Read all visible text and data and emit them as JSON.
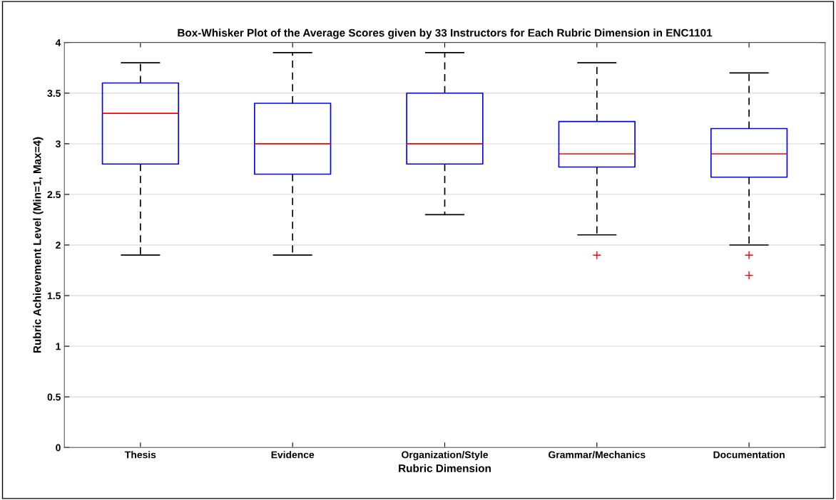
{
  "chart_data": {
    "type": "box",
    "title": "Box-Whisker Plot of the Average Scores given by 33 Instructors for Each Rubric Dimension in ENC1101",
    "xlabel": "Rubric Dimension",
    "ylabel": "Rubric Achievement Level (Min=1, Max=4)",
    "categories": [
      "Thesis",
      "Evidence",
      "Organization/Style",
      "Grammar/Mechanics",
      "Documentation"
    ],
    "boxes": [
      {
        "low": 1.9,
        "q1": 2.8,
        "median": 3.3,
        "q3": 3.6,
        "high": 3.8
      },
      {
        "low": 1.9,
        "q1": 2.7,
        "median": 3.0,
        "q3": 3.4,
        "high": 3.9
      },
      {
        "low": 2.3,
        "q1": 2.8,
        "median": 3.0,
        "q3": 3.5,
        "high": 3.9
      },
      {
        "low": 2.1,
        "q1": 2.77,
        "median": 2.9,
        "q3": 3.22,
        "high": 3.8,
        "outliers": [
          1.9
        ]
      },
      {
        "low": 2.0,
        "q1": 2.67,
        "median": 2.9,
        "q3": 3.15,
        "high": 3.7,
        "outliers": [
          1.9,
          1.7
        ]
      }
    ],
    "color": "#0000ff",
    "ylim": [
      0,
      4
    ],
    "yticks": [
      0,
      0.5,
      1,
      1.5,
      2,
      2.5,
      3,
      3.5,
      4
    ],
    "grid": "y"
  }
}
